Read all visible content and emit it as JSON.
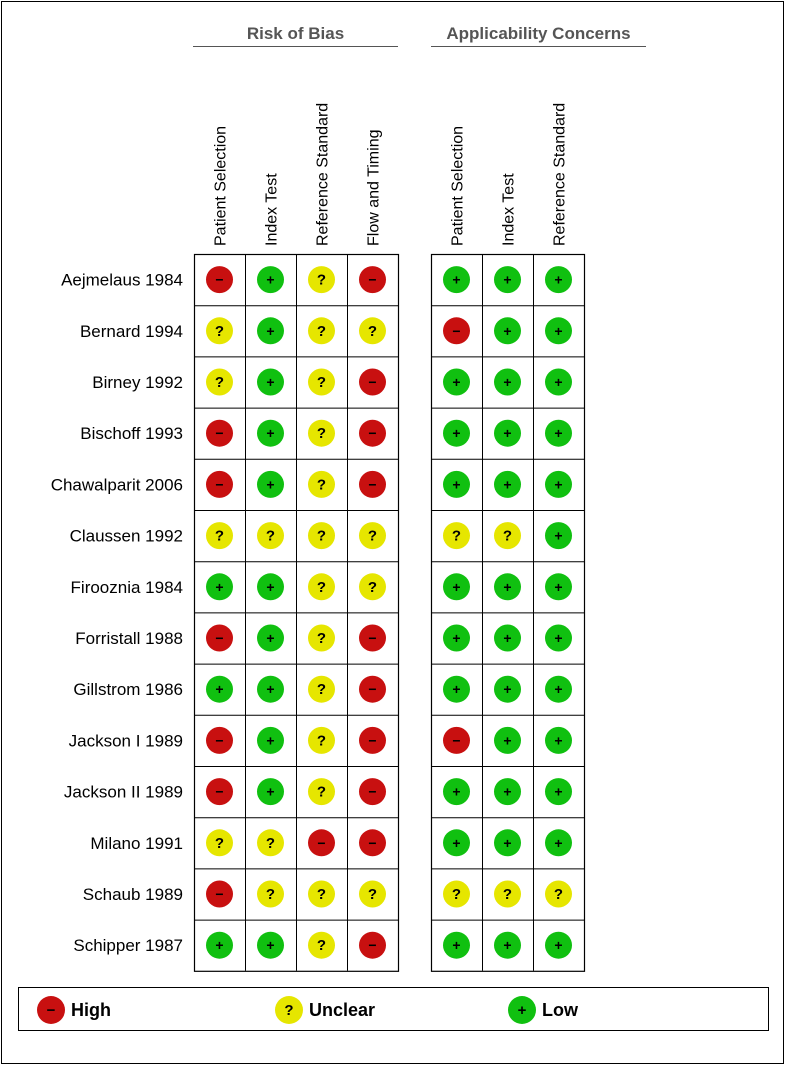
{
  "chart_data": {
    "type": "table",
    "groups": [
      {
        "title": "Risk of Bias",
        "columns": [
          "Patient Selection",
          "Index Test",
          "Reference Standard",
          "Flow and Timing"
        ]
      },
      {
        "title": "Applicability Concerns",
        "columns": [
          "Patient Selection",
          "Index Test",
          "Reference Standard"
        ]
      }
    ],
    "rows": [
      {
        "study": "Aejmelaus 1984",
        "risk": [
          "high",
          "low",
          "unclear",
          "high"
        ],
        "applicability": [
          "low",
          "low",
          "low"
        ]
      },
      {
        "study": "Bernard 1994",
        "risk": [
          "unclear",
          "low",
          "unclear",
          "unclear"
        ],
        "applicability": [
          "high",
          "low",
          "low"
        ]
      },
      {
        "study": "Birney 1992",
        "risk": [
          "unclear",
          "low",
          "unclear",
          "high"
        ],
        "applicability": [
          "low",
          "low",
          "low"
        ]
      },
      {
        "study": "Bischoff 1993",
        "risk": [
          "high",
          "low",
          "unclear",
          "high"
        ],
        "applicability": [
          "low",
          "low",
          "low"
        ]
      },
      {
        "study": "Chawalparit 2006",
        "risk": [
          "high",
          "low",
          "unclear",
          "high"
        ],
        "applicability": [
          "low",
          "low",
          "low"
        ]
      },
      {
        "study": "Claussen 1992",
        "risk": [
          "unclear",
          "unclear",
          "unclear",
          "unclear"
        ],
        "applicability": [
          "unclear",
          "unclear",
          "low"
        ]
      },
      {
        "study": "Firooznia 1984",
        "risk": [
          "low",
          "low",
          "unclear",
          "unclear"
        ],
        "applicability": [
          "low",
          "low",
          "low"
        ]
      },
      {
        "study": "Forristall 1988",
        "risk": [
          "high",
          "low",
          "unclear",
          "high"
        ],
        "applicability": [
          "low",
          "low",
          "low"
        ]
      },
      {
        "study": "Gillstrom 1986",
        "risk": [
          "low",
          "low",
          "unclear",
          "high"
        ],
        "applicability": [
          "low",
          "low",
          "low"
        ]
      },
      {
        "study": "Jackson I 1989",
        "risk": [
          "high",
          "low",
          "unclear",
          "high"
        ],
        "applicability": [
          "high",
          "low",
          "low"
        ]
      },
      {
        "study": "Jackson II 1989",
        "risk": [
          "high",
          "low",
          "unclear",
          "high"
        ],
        "applicability": [
          "low",
          "low",
          "low"
        ]
      },
      {
        "study": "Milano 1991",
        "risk": [
          "unclear",
          "unclear",
          "high",
          "high"
        ],
        "applicability": [
          "low",
          "low",
          "low"
        ]
      },
      {
        "study": "Schaub 1989",
        "risk": [
          "high",
          "unclear",
          "unclear",
          "unclear"
        ],
        "applicability": [
          "unclear",
          "unclear",
          "unclear"
        ]
      },
      {
        "study": "Schipper 1987",
        "risk": [
          "low",
          "low",
          "unclear",
          "high"
        ],
        "applicability": [
          "low",
          "low",
          "low"
        ]
      }
    ],
    "legend": [
      {
        "key": "high",
        "label": "High",
        "symbol": "−"
      },
      {
        "key": "unclear",
        "label": "Unclear",
        "symbol": "?"
      },
      {
        "key": "low",
        "label": "Low",
        "symbol": "+"
      }
    ]
  },
  "colors": {
    "high": "#c81010",
    "unclear": "#e6e600",
    "low": "#10c010"
  }
}
